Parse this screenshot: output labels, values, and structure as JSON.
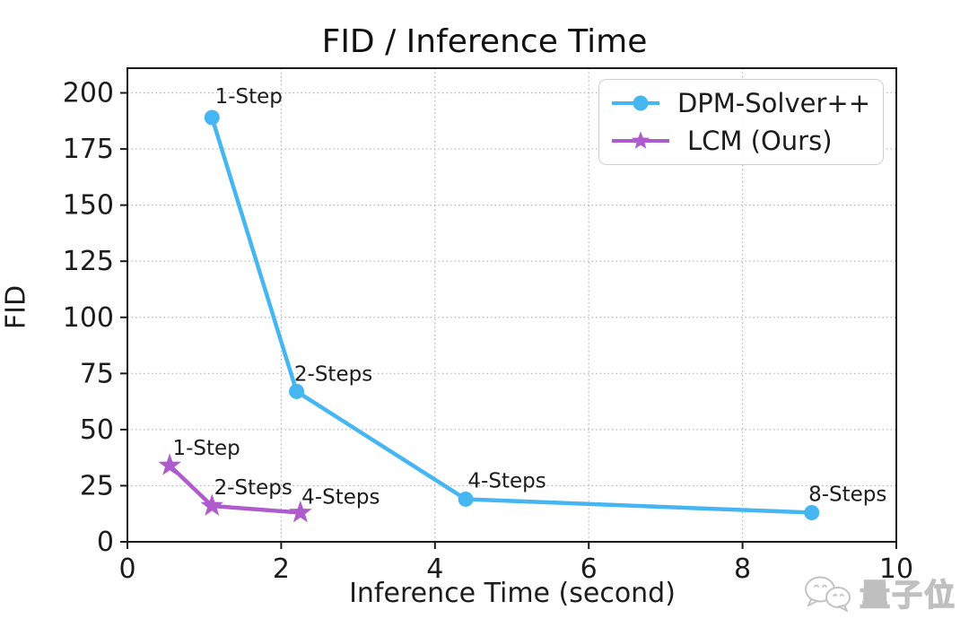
{
  "chart_data": {
    "type": "line",
    "title": "FID / Inference Time",
    "xlabel": "Inference Time (second)",
    "ylabel": "FID",
    "xlim": [
      0,
      10
    ],
    "ylim": [
      0,
      211
    ],
    "xticks": [
      0,
      2,
      4,
      6,
      8,
      10
    ],
    "yticks": [
      0,
      25,
      50,
      75,
      100,
      125,
      150,
      175,
      200
    ],
    "grid": "dotted",
    "grid_color": "#b5b5b5",
    "spine_color": "#1a1a1a",
    "legend_position": "upper right",
    "series": [
      {
        "name": "DPM-Solver++",
        "color": "#45b6f2",
        "marker": "circle",
        "points": [
          {
            "x": 1.1,
            "y": 189,
            "label": "1-Step",
            "label_dx": 41,
            "label_dy": -24
          },
          {
            "x": 2.2,
            "y": 67,
            "label": "2-Steps",
            "label_dx": 41,
            "label_dy": -20
          },
          {
            "x": 4.4,
            "y": 19,
            "label": "4-Steps",
            "label_dx": 46,
            "label_dy": -21
          },
          {
            "x": 8.9,
            "y": 13,
            "label": "8-Steps",
            "label_dx": 40,
            "label_dy": -21
          }
        ]
      },
      {
        "name": "LCM (Ours)",
        "color": "#ad5bcd",
        "marker": "star",
        "points": [
          {
            "x": 0.55,
            "y": 34,
            "label": "1-Step",
            "label_dx": 41,
            "label_dy": -20
          },
          {
            "x": 1.1,
            "y": 16,
            "label": "2-Steps",
            "label_dx": 46,
            "label_dy": -21
          },
          {
            "x": 2.25,
            "y": 13,
            "label": "4-Steps",
            "label_dx": 45,
            "label_dy": -18
          }
        ]
      }
    ]
  },
  "watermark": {
    "text": "量子位"
  }
}
